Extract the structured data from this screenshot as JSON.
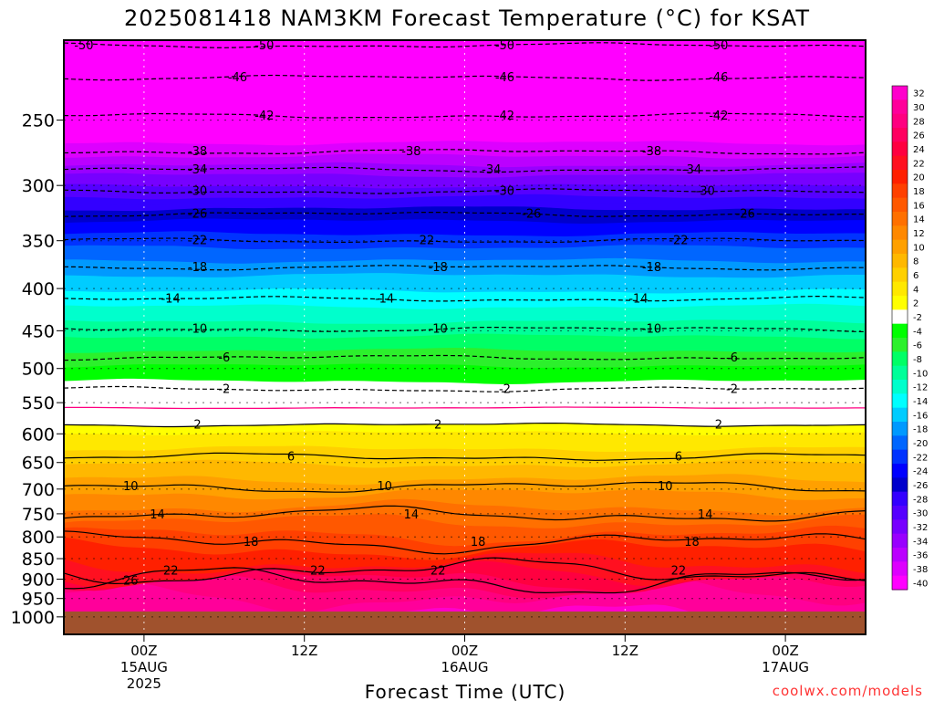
{
  "chart_data": {
    "type": "heatmap",
    "title": "2025081418 NAM3KM Forecast Temperature (°C) for KSAT",
    "xlabel": "Forecast Time (UTC)",
    "ylabel": "",
    "y_axis": {
      "scale": "log",
      "inverted": true,
      "range_hpa": [
        1050,
        200
      ],
      "tick_labels": [
        "250",
        "300",
        "350",
        "400",
        "450",
        "500",
        "550",
        "600",
        "650",
        "700",
        "750",
        "800",
        "850",
        "900",
        "950",
        "1000"
      ],
      "tick_values_hpa": [
        250,
        300,
        350,
        400,
        450,
        500,
        550,
        600,
        650,
        700,
        750,
        800,
        850,
        900,
        950,
        1000
      ],
      "dotted_gridlines": true
    },
    "x_axis": {
      "range_hours_from_15Z": [
        -6,
        54
      ],
      "ticks": [
        {
          "hour": 0,
          "line1": "00Z",
          "line2": "15AUG",
          "line3": "2025"
        },
        {
          "hour": 12,
          "line1": "12Z",
          "line2": "",
          "line3": ""
        },
        {
          "hour": 24,
          "line1": "00Z",
          "line2": "16AUG",
          "line3": ""
        },
        {
          "hour": 36,
          "line1": "12Z",
          "line2": "",
          "line3": ""
        },
        {
          "hour": 48,
          "line1": "00Z",
          "line2": "17AUG",
          "line3": ""
        }
      ],
      "dotted_gridlines": true
    },
    "colorbar": {
      "position": "right",
      "labels": [
        "32",
        "30",
        "28",
        "26",
        "24",
        "22",
        "20",
        "18",
        "16",
        "14",
        "12",
        "10",
        "8",
        "6",
        "4",
        "2",
        "-2",
        "-4",
        "-6",
        "-8",
        "-10",
        "-12",
        "-14",
        "-16",
        "-18",
        "-20",
        "-22",
        "-24",
        "-26",
        "-28",
        "-30",
        "-32",
        "-34",
        "-36",
        "-38",
        "-40"
      ],
      "colors": [
        "#ff00cc",
        "#ff009a",
        "#ff0080",
        "#ff0060",
        "#ff0040",
        "#ff1020",
        "#ff2000",
        "#ff4000",
        "#ff5800",
        "#ff7000",
        "#ff8800",
        "#ffa000",
        "#ffb800",
        "#ffd000",
        "#ffe800",
        "#ffff00",
        "#ffffff",
        "#00ff00",
        "#2cf02c",
        "#00ff66",
        "#00ff99",
        "#00ffcc",
        "#00ffff",
        "#00ccff",
        "#0099ff",
        "#0066ff",
        "#0033ff",
        "#0000ff",
        "#0000cc",
        "#3300ff",
        "#5500ff",
        "#7700ff",
        "#9900ff",
        "#bb00ff",
        "#dd00ff",
        "#ff00ff"
      ]
    },
    "contour_levels": [
      -50,
      -46,
      -42,
      -38,
      -34,
      -30,
      -26,
      -22,
      -18,
      -14,
      -10,
      -6,
      -2,
      2,
      6,
      10,
      14,
      18,
      22,
      26
    ],
    "contours": [
      {
        "value": -50,
        "p": 203,
        "dashed": true,
        "labels": [
          {
            "hour": -4.5,
            "text": "-50"
          },
          {
            "hour": 9,
            "text": "-50"
          },
          {
            "hour": 27,
            "text": "-50"
          },
          {
            "hour": 43,
            "text": "-50"
          }
        ]
      },
      {
        "value": -46,
        "p": 222,
        "dashed": true,
        "labels": [
          {
            "hour": 7,
            "text": "-46"
          },
          {
            "hour": 27,
            "text": "-46"
          },
          {
            "hour": 43,
            "text": "-46"
          }
        ]
      },
      {
        "value": -42,
        "p": 247,
        "dashed": true,
        "labels": [
          {
            "hour": 9,
            "text": "-42"
          },
          {
            "hour": 27,
            "text": "-42"
          },
          {
            "hour": 43,
            "text": "-42"
          }
        ]
      },
      {
        "value": -38,
        "p": 273,
        "dashed": true,
        "labels": [
          {
            "hour": 4,
            "text": "-38"
          },
          {
            "hour": 20,
            "text": "-38"
          },
          {
            "hour": 38,
            "text": "-38"
          }
        ]
      },
      {
        "value": -34,
        "p": 287,
        "dashed": true,
        "labels": [
          {
            "hour": 4,
            "text": "-34"
          },
          {
            "hour": 26,
            "text": "-34"
          },
          {
            "hour": 41,
            "text": "-34"
          }
        ]
      },
      {
        "value": -30,
        "p": 305,
        "dashed": true,
        "labels": [
          {
            "hour": 4,
            "text": "-30"
          },
          {
            "hour": 27,
            "text": "-30"
          },
          {
            "hour": 42,
            "text": "-30"
          }
        ]
      },
      {
        "value": -26,
        "p": 325,
        "dashed": true,
        "labels": [
          {
            "hour": 4,
            "text": "-26"
          },
          {
            "hour": 29,
            "text": "-26"
          },
          {
            "hour": 45,
            "text": "-26"
          }
        ]
      },
      {
        "value": -22,
        "p": 350,
        "dashed": true,
        "labels": [
          {
            "hour": 4,
            "text": "-22"
          },
          {
            "hour": 21,
            "text": "-22"
          },
          {
            "hour": 40,
            "text": "-22"
          }
        ]
      },
      {
        "value": -18,
        "p": 377,
        "dashed": true,
        "labels": [
          {
            "hour": 4,
            "text": "-18"
          },
          {
            "hour": 22,
            "text": "-18"
          },
          {
            "hour": 38,
            "text": "-18"
          }
        ]
      },
      {
        "value": -14,
        "p": 412,
        "dashed": true,
        "labels": [
          {
            "hour": 2,
            "text": "-14"
          },
          {
            "hour": 18,
            "text": "-14"
          },
          {
            "hour": 37,
            "text": "-14"
          }
        ]
      },
      {
        "value": -10,
        "p": 448,
        "dashed": true,
        "labels": [
          {
            "hour": 4,
            "text": "-10"
          },
          {
            "hour": 22,
            "text": "-10"
          },
          {
            "hour": 38,
            "text": "-10"
          }
        ]
      },
      {
        "value": -6,
        "p": 485,
        "dashed": true,
        "labels": [
          {
            "hour": 6,
            "text": "-6"
          },
          {
            "hour": 44,
            "text": "-6"
          }
        ]
      },
      {
        "value": -2,
        "p": 530,
        "dashed": true,
        "labels": [
          {
            "hour": 6,
            "text": "-2"
          },
          {
            "hour": 27,
            "text": "-2"
          },
          {
            "hour": 44,
            "text": "-2"
          }
        ]
      },
      {
        "value": 2,
        "p": 585,
        "dashed": false,
        "labels": [
          {
            "hour": 4,
            "text": "2"
          },
          {
            "hour": 22,
            "text": "2"
          },
          {
            "hour": 43,
            "text": "2"
          }
        ]
      },
      {
        "value": 6,
        "p": 640,
        "dashed": false,
        "labels": [
          {
            "hour": 11,
            "text": "6"
          },
          {
            "hour": 40,
            "text": "6"
          }
        ]
      },
      {
        "value": 10,
        "p": 695,
        "dashed": false,
        "labels": [
          {
            "hour": -1,
            "text": "10"
          },
          {
            "hour": 18,
            "text": "10"
          },
          {
            "hour": 39,
            "text": "10"
          }
        ]
      },
      {
        "value": 14,
        "p": 752,
        "dashed": false,
        "labels": [
          {
            "hour": 1,
            "text": "14"
          },
          {
            "hour": 20,
            "text": "14"
          },
          {
            "hour": 42,
            "text": "14"
          }
        ]
      },
      {
        "value": 18,
        "p": 812,
        "dashed": false,
        "labels": [
          {
            "hour": 8,
            "text": "18"
          },
          {
            "hour": 25,
            "text": "18"
          },
          {
            "hour": 41,
            "text": "18"
          }
        ]
      },
      {
        "value": 22,
        "p": 880,
        "dashed": false,
        "labels": [
          {
            "hour": 2,
            "text": "22"
          },
          {
            "hour": 22,
            "text": "22"
          },
          {
            "hour": 13,
            "text": "22"
          },
          {
            "hour": 40,
            "text": "22"
          }
        ]
      },
      {
        "value": 26,
        "p": 905,
        "dashed": false,
        "labels": [
          {
            "hour": -1,
            "text": "26"
          }
        ]
      }
    ],
    "freezing_line": {
      "value": 0,
      "p": 558,
      "color": "#ff0080"
    },
    "ground_color": "#a0522d",
    "ground_p": 985
  },
  "footer": {
    "credit": "coolwx.com/models"
  }
}
